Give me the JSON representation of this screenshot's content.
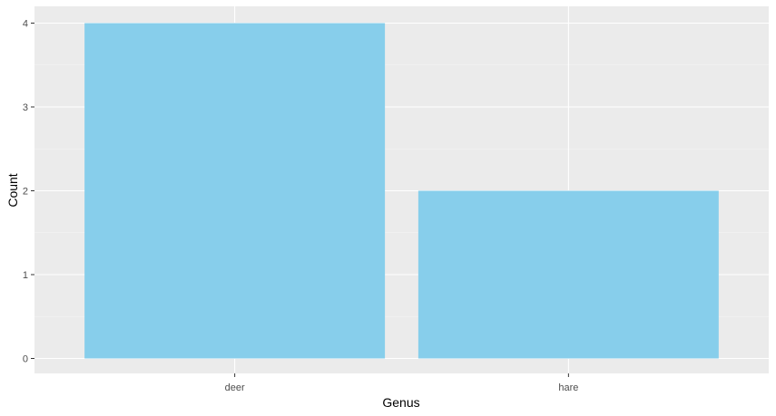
{
  "chart_data": {
    "type": "bar",
    "categories": [
      "deer",
      "hare"
    ],
    "values": [
      4,
      2
    ],
    "title": "",
    "xlabel": "Genus",
    "ylabel": "Count",
    "ylim": [
      0,
      4
    ],
    "yticks": [
      "0",
      "1",
      "2",
      "3",
      "4"
    ],
    "grid": true,
    "legend": "none",
    "colors": {
      "bar": "#87CEEB",
      "panel": "#EBEBEB",
      "grid_major": "#FFFFFF",
      "grid_minor": "#F5F5F5",
      "tick_text": "#4D4D4D",
      "tick_mark": "#333333"
    }
  }
}
